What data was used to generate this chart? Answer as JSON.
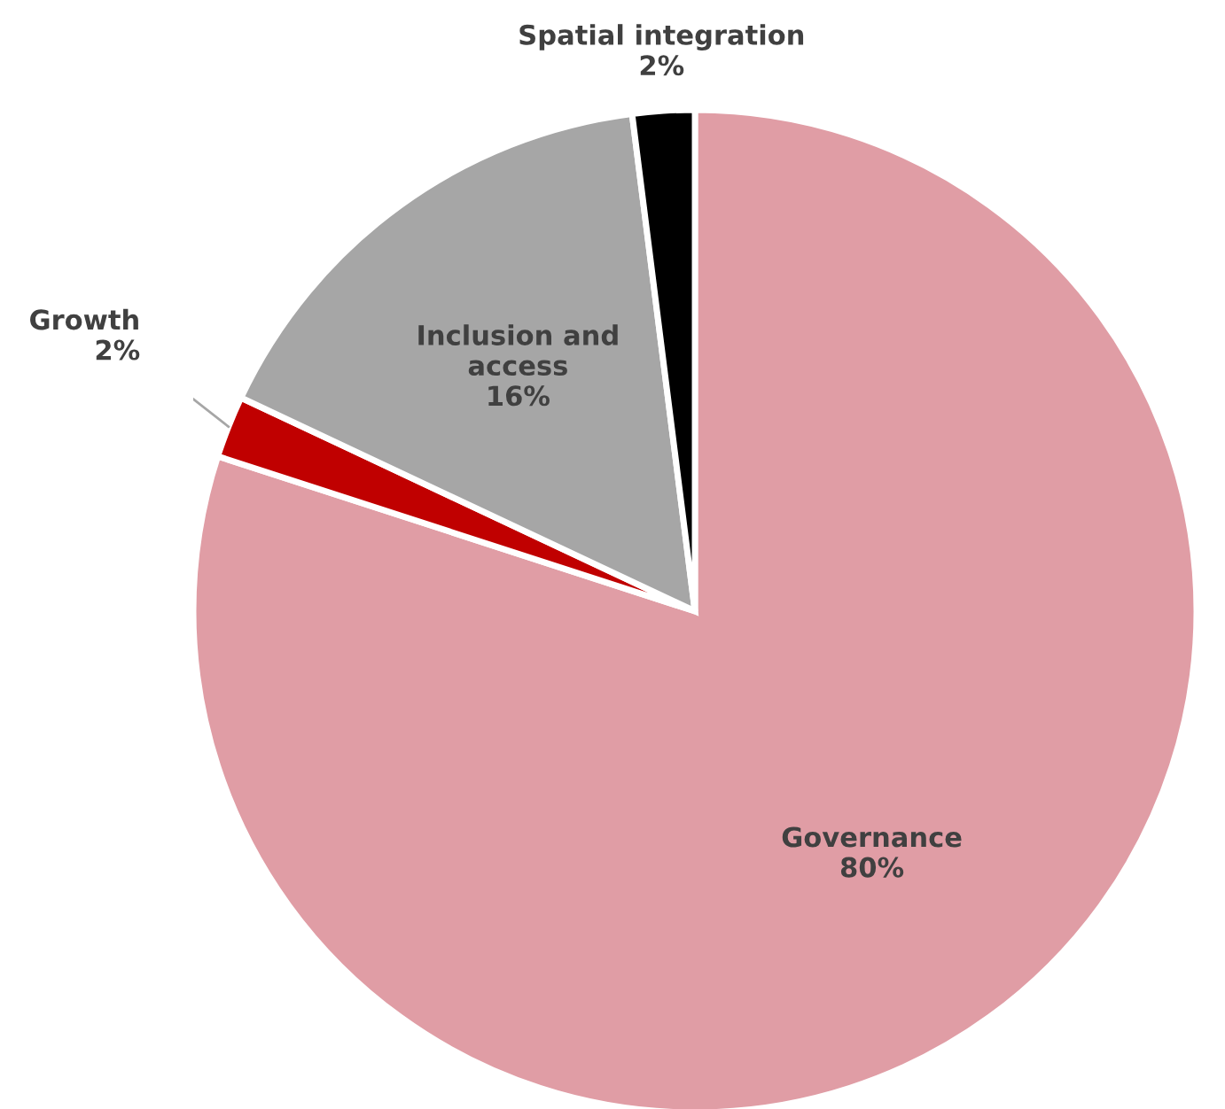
{
  "chart_data": {
    "type": "pie",
    "categories": [
      "Governance",
      "Growth",
      "Inclusion and\naccess",
      "Spatial integration"
    ],
    "values": [
      80,
      2,
      16,
      2
    ],
    "value_labels": [
      "80%",
      "2%",
      "16%",
      "2%"
    ],
    "colors": [
      "#e09da5",
      "#c00000",
      "#a6a6a6",
      "#000000"
    ],
    "legend": false
  }
}
